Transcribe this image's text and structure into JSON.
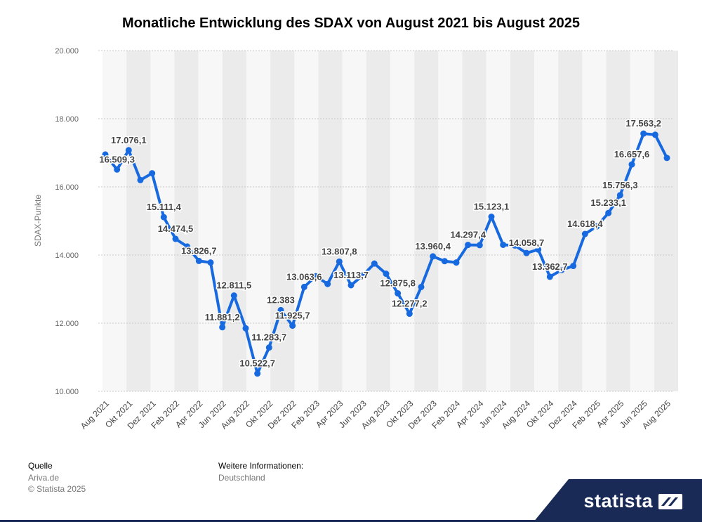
{
  "chart_data": {
    "type": "line",
    "title": "Monatliche Entwicklung des SDAX von August 2021 bis August 2025",
    "xlabel": "",
    "ylabel": "SDAX-Punkte",
    "ylim": [
      10000,
      20000
    ],
    "yticks": [
      "10.000",
      "12.000",
      "14.000",
      "16.000",
      "18.000",
      "20.000"
    ],
    "ytick_values": [
      10000,
      12000,
      14000,
      16000,
      18000,
      20000
    ],
    "grid": true,
    "color": "#1769e0",
    "categories": [
      "Aug 2021",
      "Sep 2021",
      "Okt 2021",
      "Nov 2021",
      "Dez 2021",
      "Jan 2022",
      "Feb 2022",
      "Mär 2022",
      "Apr 2022",
      "Mai 2022",
      "Jun 2022",
      "Jul 2022",
      "Aug 2022",
      "Sep 2022",
      "Okt 2022",
      "Nov 2022",
      "Dez 2022",
      "Jan 2023",
      "Feb 2023",
      "Mär 2023",
      "Apr 2023",
      "Mai 2023",
      "Jun 2023",
      "Jul 2023",
      "Aug 2023",
      "Sep 2023",
      "Okt 2023",
      "Nov 2023",
      "Dez 2023",
      "Jan 2024",
      "Feb 2024",
      "Mär 2024",
      "Apr 2024",
      "Mai 2024",
      "Jun 2024",
      "Jul 2024",
      "Aug 2024",
      "Sep 2024",
      "Okt 2024",
      "Nov 2024",
      "Dez 2024",
      "Jan 2025",
      "Feb 2025",
      "Mär 2025",
      "Apr 2025",
      "Mai 2025",
      "Jun 2025",
      "Jul 2025",
      "Aug 2025"
    ],
    "tick_labels": [
      "Aug 2021",
      "Okt 2021",
      "Dez 2021",
      "Feb 2022",
      "Apr 2022",
      "Jun 2022",
      "Aug 2022",
      "Okt 2022",
      "Dez 2022",
      "Feb 2023",
      "Apr 2023",
      "Jun 2023",
      "Aug 2023",
      "Okt 2023",
      "Dez 2023",
      "Feb 2024",
      "Apr 2024",
      "Jun 2024",
      "Aug 2024",
      "Okt 2024",
      "Dez 2024",
      "Feb 2025",
      "Apr 2025",
      "Jun 2025",
      "Aug 2025"
    ],
    "values": [
      16950,
      16509.3,
      17076.1,
      16200,
      16400,
      15111.4,
      14474.5,
      14250,
      13826.7,
      13780,
      11881.2,
      12811.5,
      11850,
      10522.7,
      11283.7,
      12383,
      11925.7,
      13063.6,
      13380,
      13150,
      13807.8,
      13113.7,
      13400,
      13750,
      13450,
      12875.8,
      12277.2,
      13063,
      13960.4,
      13820,
      13780,
      14297.4,
      14290,
      15123.1,
      14300,
      14280,
      14058.7,
      14160,
      13362.7,
      13560,
      13680,
      14618.4,
      14840,
      15233.1,
      15756.3,
      16657.6,
      17563.2,
      17530,
      16850
    ],
    "labels": [
      {
        "index": 1,
        "text": "16.509,3"
      },
      {
        "index": 2,
        "text": "17.076,1"
      },
      {
        "index": 5,
        "text": "15.111,4"
      },
      {
        "index": 6,
        "text": "14.474,5"
      },
      {
        "index": 8,
        "text": "13.826,7"
      },
      {
        "index": 10,
        "text": "11.881,2"
      },
      {
        "index": 11,
        "text": "12.811,5"
      },
      {
        "index": 13,
        "text": "10.522,7"
      },
      {
        "index": 14,
        "text": "11.283,7"
      },
      {
        "index": 15,
        "text": "12.383"
      },
      {
        "index": 16,
        "text": "11.925,7"
      },
      {
        "index": 17,
        "text": "13.063,6"
      },
      {
        "index": 20,
        "text": "13.807,8"
      },
      {
        "index": 21,
        "text": "13.113,7"
      },
      {
        "index": 25,
        "text": "12.875,8"
      },
      {
        "index": 26,
        "text": "12.277,2"
      },
      {
        "index": 28,
        "text": "13.960,4"
      },
      {
        "index": 31,
        "text": "14.297,4"
      },
      {
        "index": 33,
        "text": "15.123,1"
      },
      {
        "index": 36,
        "text": "14.058,7"
      },
      {
        "index": 38,
        "text": "13.362,7"
      },
      {
        "index": 41,
        "text": "14.618,4"
      },
      {
        "index": 43,
        "text": "15.233,1"
      },
      {
        "index": 44,
        "text": "15.756,3"
      },
      {
        "index": 45,
        "text": "16.657,6"
      },
      {
        "index": 46,
        "text": "17.563,2"
      }
    ]
  },
  "footer": {
    "source_label": "Quelle",
    "source_value": "Ariva.de",
    "copyright": "© Statista 2025",
    "info_label": "Weitere Informationen:",
    "info_value": "Deutschland"
  },
  "brand": {
    "name": "statista"
  }
}
